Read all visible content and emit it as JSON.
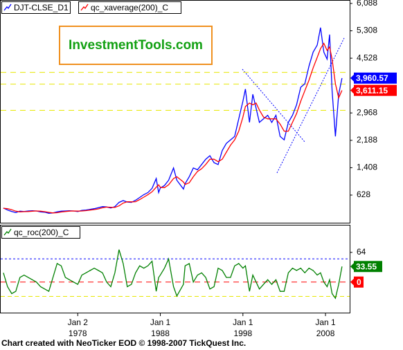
{
  "chart_data": [
    {
      "type": "line",
      "x": [
        1969.0,
        1969.5,
        1970.0,
        1970.5,
        1971.0,
        1971.5,
        1972.0,
        1972.5,
        1973.0,
        1973.5,
        1974.0,
        1974.5,
        1975.0,
        1975.5,
        1976.0,
        1976.5,
        1977.0,
        1977.5,
        1978.0,
        1978.5,
        1979.0,
        1979.5,
        1980.0,
        1980.5,
        1981.0,
        1981.5,
        1982.0,
        1982.5,
        1983.0,
        1983.5,
        1984.0,
        1984.5,
        1985.0,
        1985.5,
        1986.0,
        1986.5,
        1987.0,
        1987.5,
        1987.8,
        1988.0,
        1988.5,
        1989.0,
        1989.6,
        1990.0,
        1990.8,
        1991.0,
        1991.5,
        1992.0,
        1992.5,
        1993.0,
        1993.5,
        1994.0,
        1994.5,
        1995.0,
        1995.5,
        1996.0,
        1996.5,
        1997.0,
        1997.5,
        1998.0,
        1998.3,
        1998.8,
        1999.2,
        1999.6,
        2000.0,
        2000.5,
        2001.0,
        2001.5,
        2002.0,
        2002.5,
        2003.0,
        2003.5,
        2004.0,
        2004.5,
        2005.0,
        2005.5,
        2006.0,
        2006.5,
        2007.0,
        2007.4,
        2007.8,
        2008.2,
        2008.5,
        2008.8,
        2009.2,
        2009.6,
        2010.0
      ],
      "series": [
        {
          "name": "DJT-CLSE_D1",
          "color": "#0000ff",
          "last_label": "3,960.57",
          "values": [
            260,
            200,
            160,
            130,
            170,
            160,
            175,
            180,
            175,
            150,
            140,
            110,
            120,
            150,
            170,
            175,
            180,
            175,
            160,
            190,
            200,
            220,
            240,
            270,
            300,
            290,
            260,
            300,
            420,
            470,
            430,
            420,
            480,
            560,
            640,
            700,
            820,
            1100,
            700,
            830,
            900,
            1050,
            1400,
            1050,
            800,
            950,
            1150,
            1400,
            1350,
            1500,
            1650,
            1750,
            1550,
            1500,
            1900,
            2100,
            2200,
            2300,
            2800,
            3300,
            3650,
            2700,
            3500,
            3100,
            2700,
            2800,
            2900,
            2700,
            2900,
            2300,
            2200,
            2700,
            2900,
            3200,
            3700,
            3800,
            4300,
            4700,
            4900,
            5400,
            4700,
            4500,
            5200,
            3600,
            2300,
            3500,
            3960.57
          ]
        },
        {
          "name": "qc_xaverage(200)_C",
          "color": "#ff0000",
          "last_label": "3,611.15",
          "values": [
            250,
            240,
            210,
            170,
            150,
            155,
            160,
            170,
            175,
            170,
            155,
            135,
            120,
            125,
            145,
            160,
            172,
            176,
            172,
            175,
            185,
            200,
            215,
            235,
            265,
            285,
            280,
            275,
            320,
            400,
            440,
            435,
            440,
            500,
            570,
            640,
            720,
            850,
            920,
            850,
            840,
            920,
            1100,
            1150,
            1000,
            930,
            980,
            1150,
            1300,
            1380,
            1500,
            1650,
            1650,
            1580,
            1650,
            1850,
            2050,
            2200,
            2450,
            2850,
            3150,
            3250,
            3200,
            3250,
            3050,
            2850,
            2800,
            2800,
            2800,
            2650,
            2450,
            2450,
            2700,
            2950,
            3300,
            3600,
            3900,
            4250,
            4550,
            4800,
            4950,
            4750,
            4850,
            4500,
            3800,
            3400,
            3611.15
          ]
        }
      ],
      "xlim": [
        1968.67,
        2010.93
      ],
      "ylim": [
        -160,
        6166
      ],
      "yticks": [
        {
          "value": 6088,
          "label": "6,088"
        },
        {
          "value": 5308,
          "label": "5,308"
        },
        {
          "value": 4528,
          "label": "4,528"
        },
        {
          "value": 2968,
          "label": "2,968"
        },
        {
          "value": 2188,
          "label": "2,188"
        },
        {
          "value": 1408,
          "label": "1,408"
        },
        628
      ],
      "hlines": [
        {
          "value": 4123,
          "color": "#e8e800"
        },
        {
          "value": 3789,
          "color": "#e8e800"
        },
        {
          "value": 3042,
          "color": "#e8e800"
        }
      ]
    },
    {
      "type": "line",
      "x": [
        1969.0,
        1969.5,
        1970.0,
        1970.5,
        1971.0,
        1971.5,
        1972.0,
        1972.5,
        1973.0,
        1973.5,
        1974.0,
        1974.5,
        1975.0,
        1975.5,
        1976.0,
        1976.5,
        1977.0,
        1977.5,
        1978.0,
        1978.5,
        1979.0,
        1979.5,
        1980.0,
        1980.5,
        1981.0,
        1981.5,
        1982.0,
        1982.5,
        1983.0,
        1983.5,
        1984.0,
        1984.5,
        1985.0,
        1985.5,
        1986.0,
        1986.5,
        1987.0,
        1987.5,
        1987.8,
        1988.0,
        1988.5,
        1989.0,
        1989.6,
        1990.0,
        1990.8,
        1991.0,
        1991.5,
        1992.0,
        1992.5,
        1993.0,
        1993.5,
        1994.0,
        1994.5,
        1995.0,
        1995.5,
        1996.0,
        1996.5,
        1997.0,
        1997.5,
        1998.0,
        1998.3,
        1998.8,
        1999.2,
        1999.6,
        2000.0,
        2000.5,
        2001.0,
        2001.5,
        2002.0,
        2002.5,
        2003.0,
        2003.5,
        2004.0,
        2004.5,
        2005.0,
        2005.5,
        2006.0,
        2006.5,
        2007.0,
        2007.4,
        2007.8,
        2008.2,
        2008.5,
        2008.8,
        2009.2,
        2009.6,
        2010.0
      ],
      "series": [
        {
          "name": "qc_roc(200)_C",
          "color": "#008000",
          "last_label": "33.55",
          "values": [
            20,
            -10,
            -25,
            -20,
            10,
            15,
            10,
            5,
            0,
            -10,
            -15,
            -20,
            10,
            40,
            35,
            10,
            5,
            0,
            -5,
            15,
            20,
            25,
            30,
            25,
            20,
            0,
            -10,
            20,
            70,
            40,
            -10,
            -5,
            20,
            35,
            30,
            35,
            45,
            -20,
            10,
            15,
            30,
            50,
            -10,
            -30,
            -5,
            35,
            40,
            0,
            15,
            20,
            10,
            -15,
            -10,
            30,
            25,
            10,
            10,
            35,
            40,
            30,
            35,
            -20,
            15,
            0,
            -15,
            -5,
            5,
            -5,
            5,
            -20,
            -20,
            20,
            30,
            25,
            30,
            20,
            30,
            25,
            15,
            20,
            0,
            -10,
            5,
            -25,
            -35,
            -5,
            33.55
          ]
        }
      ],
      "xlim": [
        1968.67,
        2010.93
      ],
      "ylim": [
        -66,
        122
      ],
      "yticks": [
        64
      ],
      "hlines": [
        {
          "value": 50,
          "color": "#0000ff",
          "dash": "3,3"
        },
        {
          "value": 0,
          "color": "#ff0000",
          "boxed": true
        },
        {
          "value": -31,
          "color": "#e8e800",
          "dash": "6,4"
        }
      ],
      "xticks": [
        {
          "value": 1978.0,
          "label": "Jan 2",
          "year": "1978"
        },
        {
          "value": 1988.0,
          "label": "Jan 1",
          "year": "1988"
        },
        {
          "value": 1998.0,
          "label": "Jan 1",
          "year": "1998"
        },
        {
          "value": 2008.0,
          "label": "Jan 1",
          "year": "2008"
        }
      ]
    }
  ],
  "watermark": "InvestmentTools.com",
  "footer": "Chart created with NeoTicker EOD © 1998-2007 TickQuest Inc."
}
